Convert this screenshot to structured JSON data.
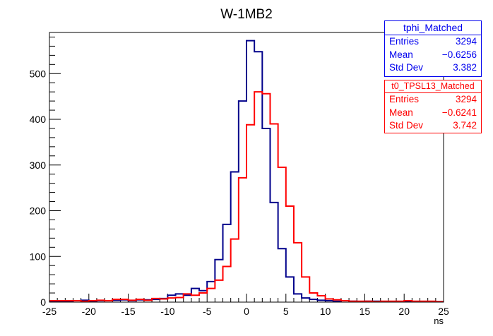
{
  "chart_data": {
    "type": "histogram",
    "title": "W-1MB2",
    "xlabel": "ns",
    "ylabel": "",
    "xlim": [
      -25,
      25
    ],
    "ylim": [
      0,
      590
    ],
    "bin_width": 1,
    "x_ticks": [
      "-25",
      "-20",
      "-15",
      "-10",
      "-5",
      "0",
      "5",
      "10",
      "15",
      "20",
      "25"
    ],
    "y_ticks": [
      "0",
      "100",
      "200",
      "300",
      "400",
      "500"
    ],
    "series": [
      {
        "name": "tphi_Matched",
        "color": "#00008b",
        "values": [
          2,
          2,
          2,
          3,
          4,
          2,
          3,
          3,
          4,
          5,
          3,
          5,
          5,
          6,
          8,
          15,
          18,
          15,
          30,
          25,
          45,
          93,
          170,
          285,
          440,
          572,
          548,
          380,
          218,
          117,
          55,
          18,
          9,
          6,
          4,
          3,
          2,
          3,
          2,
          1,
          2,
          2,
          1,
          1,
          1,
          2,
          1,
          1,
          1,
          1
        ]
      },
      {
        "name": "t0_TPSL13_Matched",
        "color": "#ff0000",
        "values": [
          3,
          3,
          3,
          3,
          2,
          3,
          4,
          3,
          6,
          6,
          4,
          6,
          4,
          8,
          7,
          9,
          10,
          18,
          15,
          20,
          30,
          48,
          78,
          138,
          272,
          388,
          460,
          456,
          390,
          295,
          210,
          130,
          55,
          20,
          14,
          7,
          5,
          3,
          2,
          2,
          2,
          1,
          2,
          2,
          2,
          3,
          2,
          2,
          2,
          1
        ]
      }
    ]
  },
  "stats_boxes": [
    {
      "title": "tphi_Matched",
      "rows": [
        {
          "label": "Entries",
          "value": "3294"
        },
        {
          "label": "Mean",
          "value": "−0.6256"
        },
        {
          "label": "Std Dev",
          "value": "3.382"
        }
      ]
    },
    {
      "title": "t0_TPSL13_Matched",
      "rows": [
        {
          "label": "Entries",
          "value": "3294"
        },
        {
          "label": "Mean",
          "value": "−0.6241"
        },
        {
          "label": "Std Dev",
          "value": "3.742"
        }
      ]
    }
  ]
}
